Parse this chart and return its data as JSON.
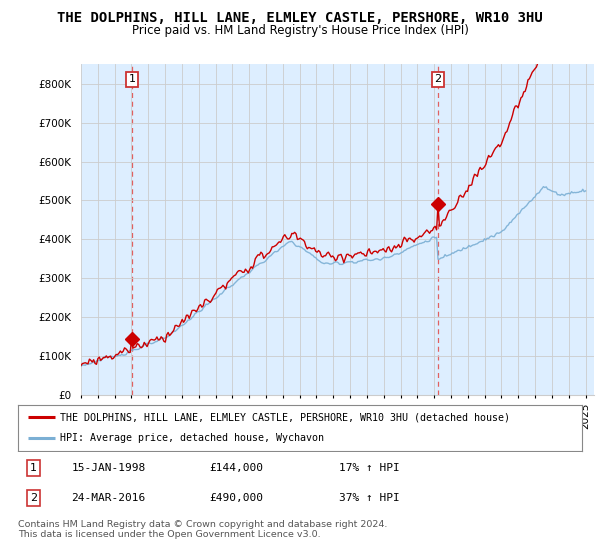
{
  "title": "THE DOLPHINS, HILL LANE, ELMLEY CASTLE, PERSHORE, WR10 3HU",
  "subtitle": "Price paid vs. HM Land Registry's House Price Index (HPI)",
  "ylim": [
    0,
    850000
  ],
  "yticks": [
    0,
    100000,
    200000,
    300000,
    400000,
    500000,
    600000,
    700000,
    800000
  ],
  "hpi_color": "#7bafd4",
  "price_color": "#cc0000",
  "fill_color": "#ddeeff",
  "dashed_line_color": "#e06060",
  "marker1_date": 1998.04,
  "marker1_price": 144000,
  "marker2_date": 2016.22,
  "marker2_price": 490000,
  "legend_line1": "THE DOLPHINS, HILL LANE, ELMLEY CASTLE, PERSHORE, WR10 3HU (detached house)",
  "legend_line2": "HPI: Average price, detached house, Wychavon",
  "table_row1": [
    "1",
    "15-JAN-1998",
    "£144,000",
    "17% ↑ HPI"
  ],
  "table_row2": [
    "2",
    "24-MAR-2016",
    "£490,000",
    "37% ↑ HPI"
  ],
  "footer": "Contains HM Land Registry data © Crown copyright and database right 2024.\nThis data is licensed under the Open Government Licence v3.0.",
  "background_color": "#ffffff",
  "grid_color": "#cccccc",
  "title_fontsize": 10,
  "subtitle_fontsize": 8.5,
  "tick_fontsize": 7.5
}
